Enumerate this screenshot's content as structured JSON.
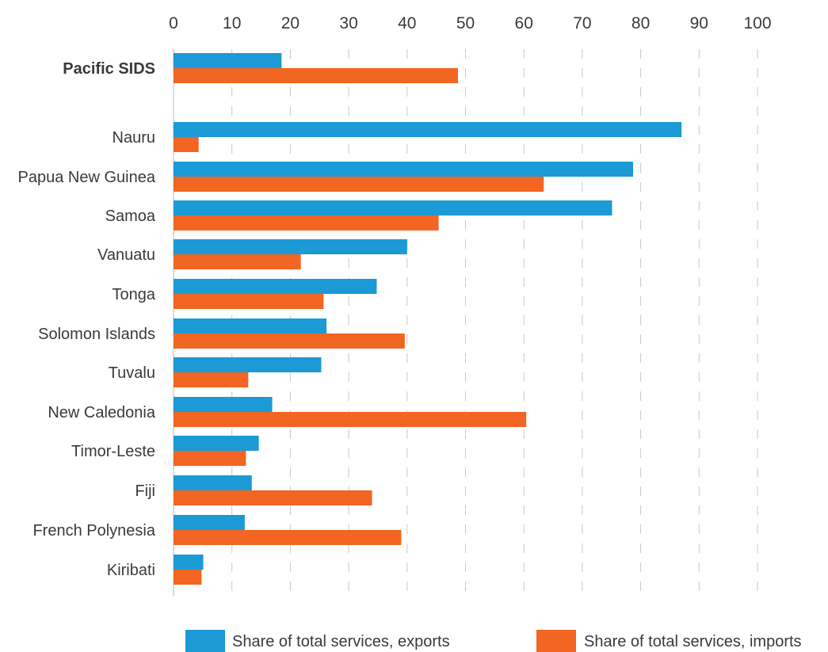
{
  "chart_data": {
    "type": "bar",
    "orientation": "horizontal",
    "title": "",
    "xlabel": "",
    "ylabel": "",
    "xlim": [
      0,
      100
    ],
    "x_ticks": [
      "0",
      "10",
      "20",
      "30",
      "40",
      "50",
      "60",
      "70",
      "80",
      "90",
      "100"
    ],
    "x_axis_position": "top",
    "grid": true,
    "legend_position": "bottom",
    "categories": [
      "Pacific SIDS",
      "Nauru",
      "Papua New Guinea",
      "Samoa",
      "Vanuatu",
      "Tonga",
      "Solomon Islands",
      "Tuvalu",
      "New Caledonia",
      "Timor-Leste",
      "Fiji",
      "French Polynesia",
      "Kiribati"
    ],
    "highlighted_category": "Pacific SIDS",
    "series": [
      {
        "name": "Share of total services, exports",
        "color": "#1b9ad6",
        "values": [
          18.5,
          87,
          78.7,
          75.1,
          40,
          34.8,
          26.2,
          25.3,
          16.9,
          14.6,
          13.4,
          12.2,
          5.1
        ]
      },
      {
        "name": "Share of total services, imports",
        "color": "#f26522",
        "values": [
          48.7,
          4.3,
          63.4,
          45.4,
          21.8,
          25.7,
          39.6,
          12.8,
          60.4,
          12.4,
          34,
          39,
          4.8
        ]
      }
    ]
  }
}
